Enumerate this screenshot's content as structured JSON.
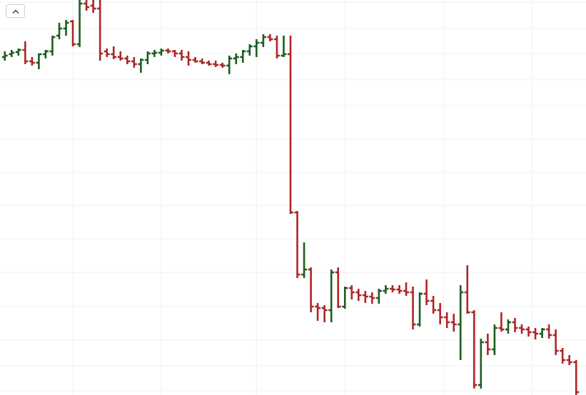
{
  "chart_data": {
    "type": "ohlc",
    "up_color": "#1d5c22",
    "down_color": "#ad2626",
    "ylim": [
      0,
      554
    ],
    "yticks": [
      6,
      41,
      77,
      124,
      172,
      219,
      266,
      312,
      359,
      406,
      442,
      479,
      514,
      551
    ],
    "xticks": [
      10,
      23,
      37,
      50,
      64.5,
      77.5
    ],
    "grid": true,
    "open": [
      474,
      478,
      481,
      484,
      468,
      466,
      478,
      482,
      504,
      514,
      524,
      492,
      549,
      546,
      542,
      482,
      478,
      474,
      472,
      468,
      464,
      470,
      479,
      480,
      483,
      482,
      479,
      474,
      470,
      468,
      466,
      464,
      463,
      462,
      472,
      474,
      482,
      489,
      494,
      502,
      499,
      476,
      478,
      256,
      169,
      176,
      124,
      122,
      119,
      172,
      124,
      150,
      144,
      140,
      138,
      136,
      146,
      149,
      148,
      146,
      144,
      99,
      142,
      132,
      119,
      109,
      102,
      99,
      144,
      116,
      14,
      74,
      64,
      94,
      92,
      102,
      94,
      92,
      88,
      86,
      92,
      84,
      62,
      49,
      46
    ],
    "high": [
      482,
      484,
      486,
      496,
      474,
      479,
      484,
      504,
      522,
      526,
      526,
      554,
      554,
      554,
      554,
      486,
      489,
      482,
      476,
      474,
      472,
      482,
      484,
      486,
      486,
      484,
      484,
      482,
      474,
      472,
      469,
      469,
      466,
      476,
      479,
      484,
      492,
      499,
      506,
      506,
      504,
      504,
      504,
      258,
      214,
      179,
      129,
      126,
      176,
      179,
      152,
      154,
      149,
      146,
      144,
      149,
      154,
      154,
      154,
      158,
      152,
      144,
      162,
      139,
      129,
      116,
      114,
      154,
      182,
      119,
      79,
      86,
      99,
      116,
      106,
      108,
      99,
      96,
      94,
      94,
      99,
      92,
      66,
      56,
      49
    ],
    "low": [
      469,
      474,
      476,
      464,
      462,
      457,
      472,
      476,
      499,
      504,
      489,
      488,
      539,
      536,
      469,
      474,
      471,
      469,
      464,
      459,
      452,
      464,
      474,
      476,
      479,
      474,
      469,
      462,
      466,
      464,
      462,
      460,
      459,
      450,
      464,
      466,
      476,
      474,
      488,
      496,
      472,
      474,
      254,
      164,
      164,
      116,
      104,
      102,
      102,
      122,
      121,
      134,
      132,
      129,
      128,
      128,
      142,
      144,
      142,
      139,
      92,
      96,
      126,
      114,
      99,
      94,
      89,
      49,
      114,
      9,
      9,
      56,
      56,
      89,
      86,
      88,
      86,
      82,
      78,
      80,
      79,
      56,
      44,
      42,
      0
    ],
    "close": [
      476,
      480,
      484,
      468,
      466,
      478,
      482,
      502,
      514,
      522,
      492,
      549,
      544,
      542,
      479,
      478,
      474,
      472,
      468,
      464,
      470,
      479,
      480,
      483,
      482,
      479,
      474,
      470,
      468,
      466,
      464,
      463,
      462,
      472,
      474,
      482,
      489,
      494,
      502,
      499,
      476,
      478,
      256,
      169,
      176,
      124,
      122,
      119,
      172,
      124,
      150,
      144,
      140,
      138,
      136,
      146,
      149,
      148,
      146,
      144,
      99,
      142,
      132,
      119,
      109,
      102,
      99,
      144,
      116,
      14,
      74,
      64,
      94,
      92,
      102,
      94,
      92,
      88,
      86,
      92,
      84,
      62,
      49,
      46,
      4
    ]
  }
}
